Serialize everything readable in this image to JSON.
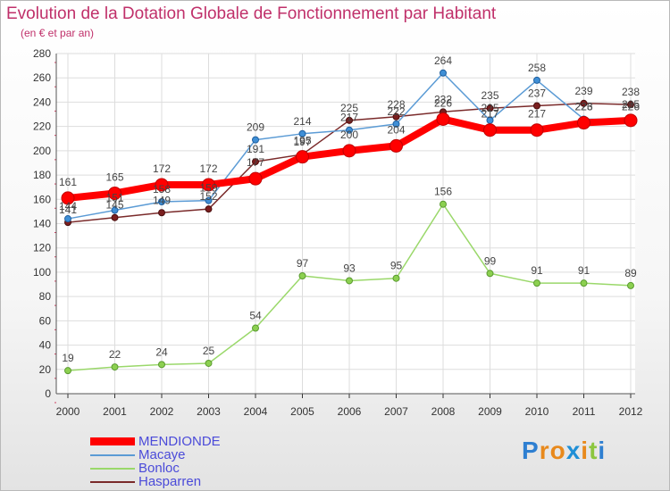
{
  "header": {
    "title": "Evolution de la Dotation Globale de Fonctionnement par Habitant",
    "subtitle": "(en € et par an)"
  },
  "chart_data": {
    "type": "line",
    "title": "Evolution de la Dotation Globale de Fonctionnement par Habitant",
    "subtitle": "(en € et par an)",
    "xlabel": "",
    "ylabel": "",
    "x": [
      "2000",
      "2001",
      "2002",
      "2003",
      "2004",
      "2005",
      "2006",
      "2007",
      "2008",
      "2009",
      "2010",
      "2011",
      "2012"
    ],
    "ylim": [
      0,
      280
    ],
    "yticks": [
      0,
      20,
      40,
      60,
      80,
      100,
      120,
      140,
      160,
      180,
      200,
      220,
      240,
      260,
      280
    ],
    "grid": true,
    "legend_position": "bottom-left",
    "series": [
      {
        "name": "MENDIONDE",
        "color": "#ff0000",
        "values": [
          161,
          165,
          172,
          172,
          177,
          195,
          200,
          204,
          226,
          217,
          217,
          223,
          225
        ]
      },
      {
        "name": "Macaye",
        "color": "#5b9bd5",
        "values": [
          144,
          151,
          158,
          159,
          209,
          214,
          217,
          222,
          264,
          225,
          258,
          226,
          226
        ]
      },
      {
        "name": "Bonloc",
        "color": "#9ad86a",
        "values": [
          19,
          22,
          24,
          25,
          54,
          97,
          93,
          95,
          156,
          99,
          91,
          91,
          89
        ]
      },
      {
        "name": "Hasparren",
        "color": "#7a2a2a",
        "values": [
          141,
          145,
          149,
          152,
          191,
          197,
          225,
          228,
          232,
          235,
          237,
          239,
          238
        ]
      }
    ]
  },
  "logo": {
    "letters": [
      "P",
      "r",
      "o",
      "x",
      "i",
      "t",
      "i"
    ],
    "colors": [
      "#2e7fd1",
      "#e8891c",
      "#e8891c",
      "#1f8fd6",
      "#e8891c",
      "#8cc63f",
      "#2e7fd1"
    ]
  }
}
